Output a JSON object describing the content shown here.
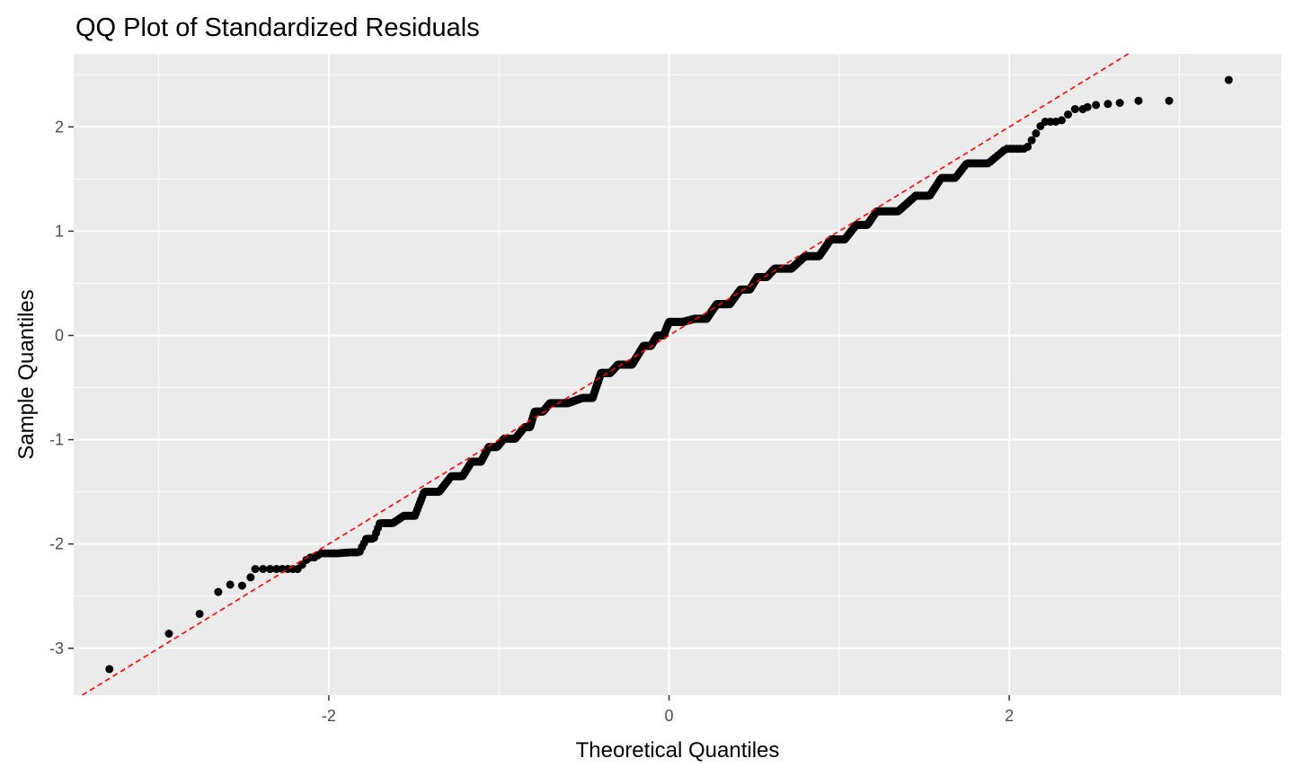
{
  "chart_data": {
    "type": "scatter",
    "title": "QQ Plot of Standardized Residuals",
    "xlabel": "Theoretical Quantiles",
    "ylabel": "Sample Quantiles",
    "xlim": [
      -3.5,
      3.6
    ],
    "ylim": [
      -3.45,
      2.7
    ],
    "x_major_ticks": [
      -2,
      0,
      2
    ],
    "x_tick_labels": [
      "-2",
      "0",
      "2"
    ],
    "x_minor_ticks": [
      -3,
      -1,
      1,
      3
    ],
    "y_major_ticks": [
      -3,
      -2,
      -1,
      0,
      1,
      2
    ],
    "y_tick_labels": [
      "-3",
      "-2",
      "-1",
      "0",
      "1",
      "2"
    ],
    "y_minor_ticks": [
      -2.5,
      -1.5,
      -0.5,
      0.5,
      1.5,
      2.5
    ],
    "grid": true,
    "background_color": "#ebebeb",
    "grid_color": "#ffffff",
    "point_color": "#000000",
    "reference_line": {
      "style": "dashed",
      "color": "#ff0000",
      "intercept": 0,
      "slope": 1
    },
    "point_count": 1000,
    "tail_points": [
      {
        "x": -3.29,
        "y": -3.2
      },
      {
        "x": -2.94,
        "y": -2.86
      },
      {
        "x": -2.76,
        "y": -2.67
      },
      {
        "x": -2.65,
        "y": -2.46
      },
      {
        "x": -2.58,
        "y": -2.39
      },
      {
        "x": -2.51,
        "y": -2.4
      },
      {
        "x": -2.46,
        "y": -2.32
      },
      {
        "x": 2.46,
        "y": 2.19
      },
      {
        "x": 2.51,
        "y": 2.21
      },
      {
        "x": 2.58,
        "y": 2.22
      },
      {
        "x": 2.65,
        "y": 2.23
      },
      {
        "x": 2.76,
        "y": 2.25
      },
      {
        "x": 2.94,
        "y": 2.25
      },
      {
        "x": 3.29,
        "y": 2.45
      }
    ],
    "step_profile": [
      {
        "x": -2.44,
        "y": -2.24
      },
      {
        "x": -2.25,
        "y": -2.24
      },
      {
        "x": -2.12,
        "y": -2.13
      },
      {
        "x": -2.05,
        "y": -2.09
      },
      {
        "x": -1.87,
        "y": -2.08
      },
      {
        "x": -1.78,
        "y": -1.95
      },
      {
        "x": -1.7,
        "y": -1.8
      },
      {
        "x": -1.56,
        "y": -1.73
      },
      {
        "x": -1.44,
        "y": -1.5
      },
      {
        "x": -1.28,
        "y": -1.35
      },
      {
        "x": -1.16,
        "y": -1.21
      },
      {
        "x": -1.06,
        "y": -1.07
      },
      {
        "x": -0.97,
        "y": -0.99
      },
      {
        "x": -0.85,
        "y": -0.88
      },
      {
        "x": -0.79,
        "y": -0.73
      },
      {
        "x": -0.7,
        "y": -0.65
      },
      {
        "x": -0.51,
        "y": -0.6
      },
      {
        "x": -0.4,
        "y": -0.36
      },
      {
        "x": -0.3,
        "y": -0.28
      },
      {
        "x": -0.15,
        "y": -0.1
      },
      {
        "x": -0.07,
        "y": 0.0
      },
      {
        "x": 0.0,
        "y": 0.13
      },
      {
        "x": 0.15,
        "y": 0.16
      },
      {
        "x": 0.28,
        "y": 0.3
      },
      {
        "x": 0.42,
        "y": 0.44
      },
      {
        "x": 0.52,
        "y": 0.56
      },
      {
        "x": 0.62,
        "y": 0.64
      },
      {
        "x": 0.8,
        "y": 0.76
      },
      {
        "x": 0.95,
        "y": 0.92
      },
      {
        "x": 1.1,
        "y": 1.06
      },
      {
        "x": 1.22,
        "y": 1.19
      },
      {
        "x": 1.45,
        "y": 1.34
      },
      {
        "x": 1.6,
        "y": 1.51
      },
      {
        "x": 1.75,
        "y": 1.65
      },
      {
        "x": 1.98,
        "y": 1.79
      },
      {
        "x": 2.2,
        "y": 2.05
      },
      {
        "x": 2.38,
        "y": 2.17
      }
    ]
  }
}
